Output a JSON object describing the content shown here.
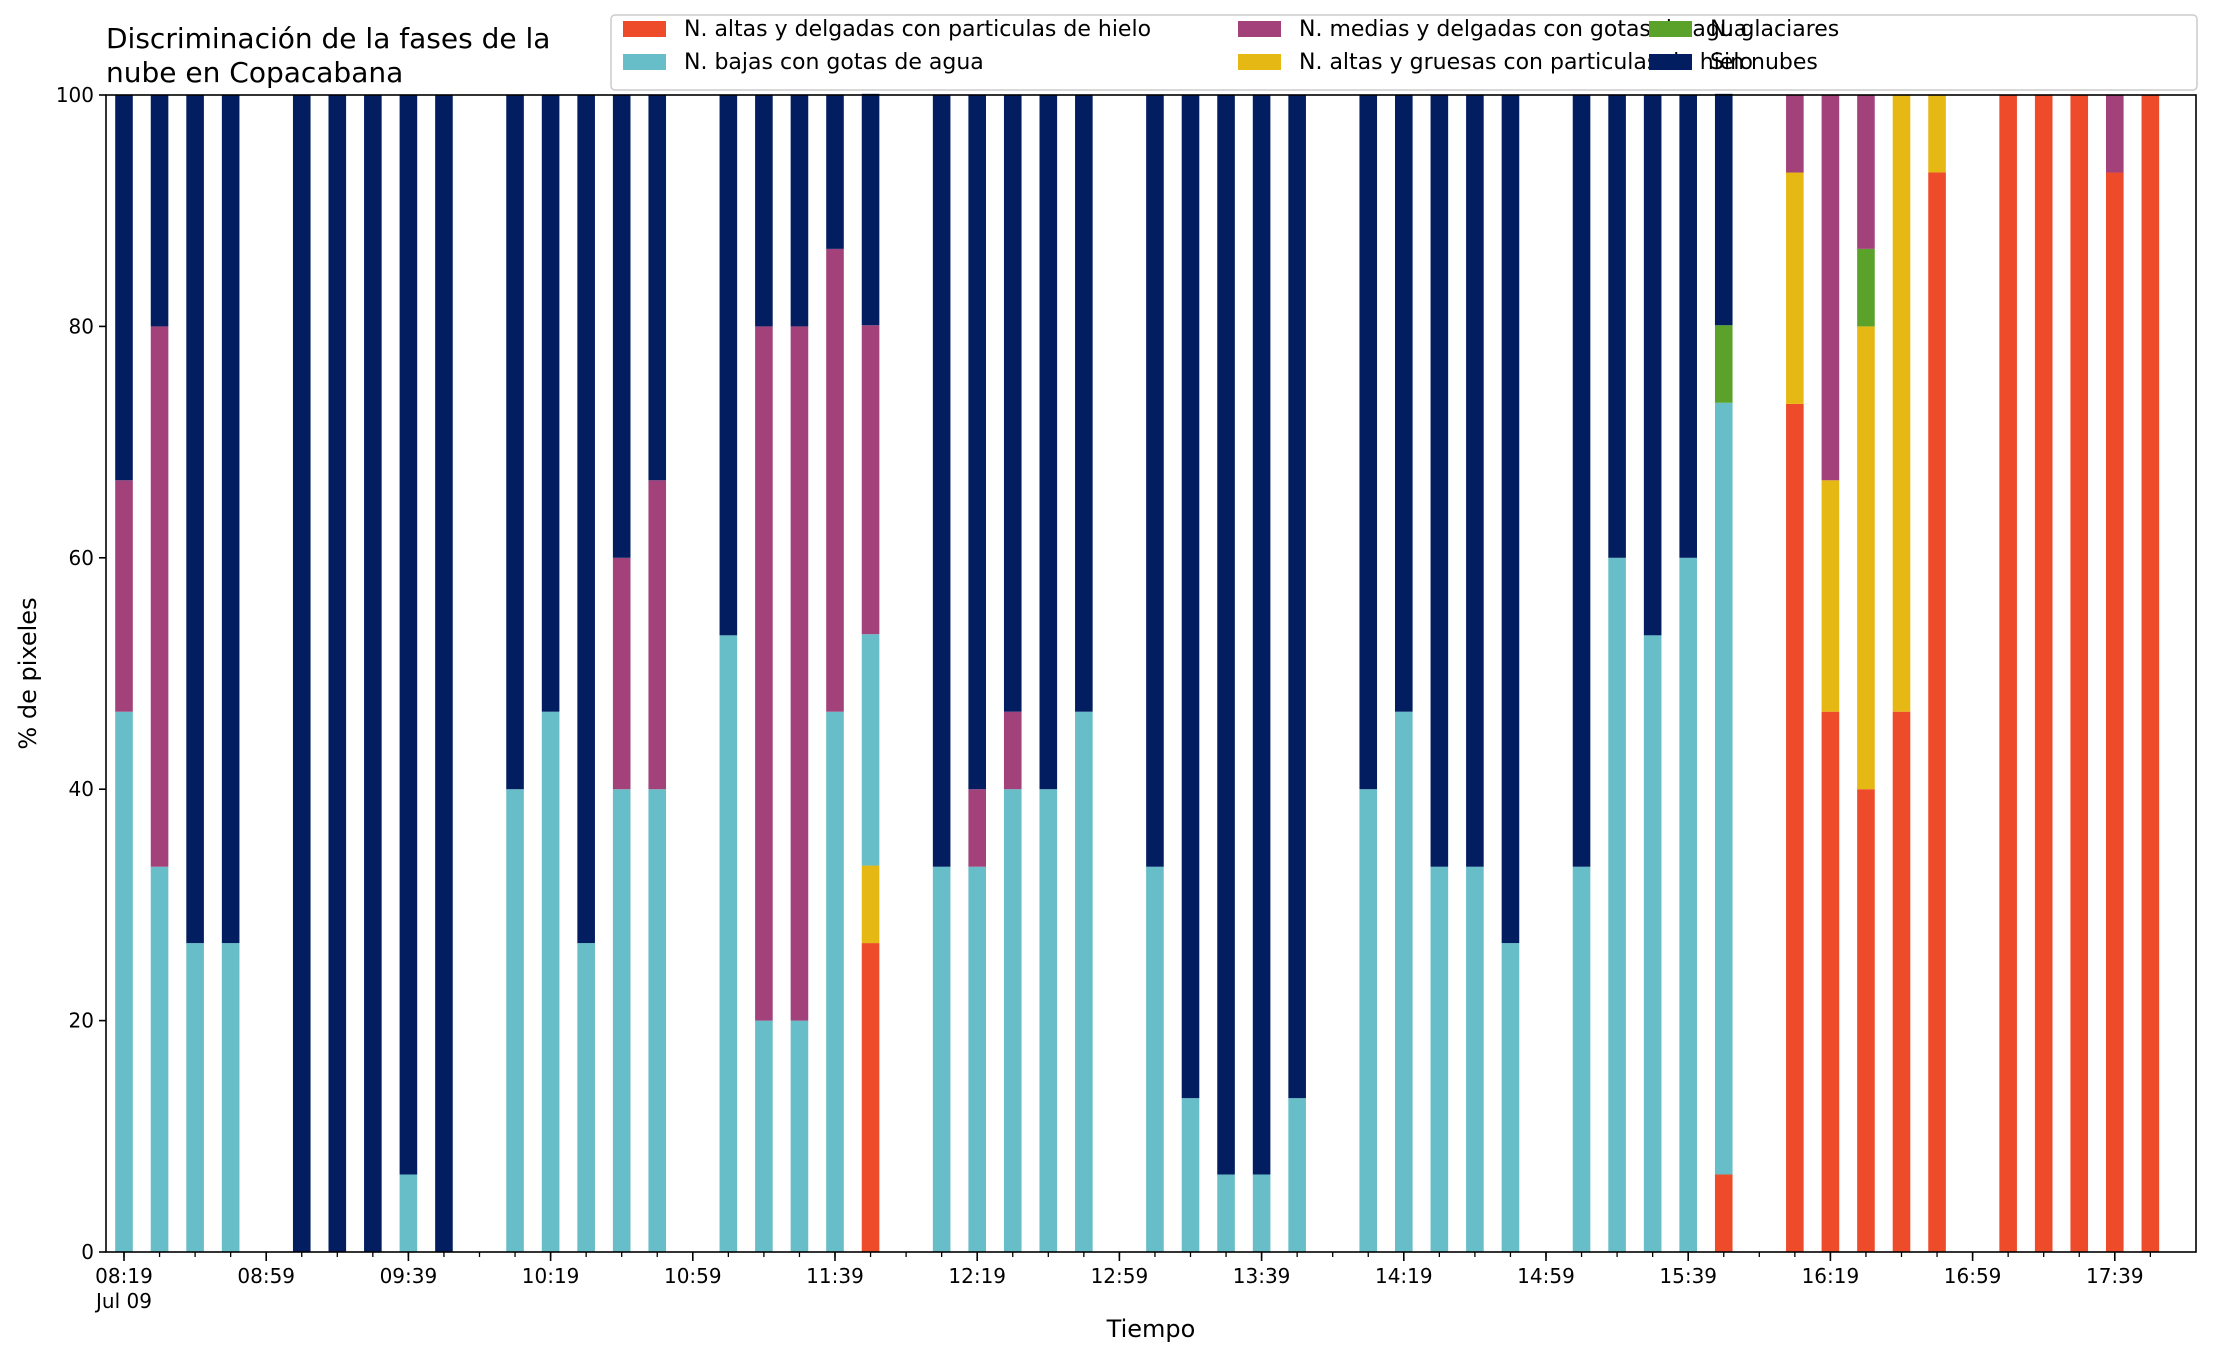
{
  "chart_data": {
    "type": "bar",
    "stacked": true,
    "title": "Discriminación de la fases de la\nnube en Copacabana",
    "xlabel": "Tiempo",
    "ylabel": "% de pixeles",
    "ylim": [
      0,
      100
    ],
    "yticks": [
      0,
      20,
      40,
      60,
      80,
      100
    ],
    "grid": false,
    "legend_position": "top-right",
    "date_label": "Jul 09",
    "xticks": [
      "08:19",
      "08:59",
      "09:39",
      "10:19",
      "10:59",
      "11:39",
      "12:19",
      "12:59",
      "13:39",
      "14:19",
      "14:59",
      "15:39",
      "16:19",
      "16:59",
      "17:39"
    ],
    "series": [
      {
        "name": "N. altas y delgadas con particulas de hielo",
        "color": "#ee4b2b"
      },
      {
        "name": "N. altas y gruesas con particulas de hielo",
        "color": "#e6b813"
      },
      {
        "name": "N. bajas con gotas de agua",
        "color": "#67bdc8"
      },
      {
        "name": "N. glaciares",
        "color": "#5ba22a"
      },
      {
        "name": "N. medias y delgadas con gotas de agua",
        "color": "#a3427a"
      },
      {
        "name": "Sin nubes",
        "color": "#021e60"
      }
    ],
    "legend_order": [
      0,
      2,
      4,
      1,
      3,
      5
    ],
    "categories": [
      "08:19",
      "08:29",
      "08:39",
      "08:49",
      "08:59",
      "09:09",
      "09:19",
      "09:29",
      "09:39",
      "09:49",
      "09:59",
      "10:09",
      "10:19",
      "10:29",
      "10:39",
      "10:49",
      "10:59",
      "11:09",
      "11:19",
      "11:29",
      "11:39",
      "11:49",
      "11:59",
      "12:09",
      "12:19",
      "12:29",
      "12:39",
      "12:49",
      "12:59",
      "13:09",
      "13:19",
      "13:29",
      "13:39",
      "13:49",
      "13:59",
      "14:09",
      "14:19",
      "14:29",
      "14:39",
      "14:49",
      "14:59",
      "15:09",
      "15:19",
      "15:29",
      "15:39",
      "15:49",
      "15:59",
      "16:09",
      "16:19",
      "16:29",
      "16:39",
      "16:49",
      "16:59",
      "17:09",
      "17:19",
      "17:29",
      "17:39",
      "17:49"
    ],
    "values": [
      [
        0,
        0,
        46.7,
        0,
        20,
        33.3
      ],
      [
        0,
        0,
        33.3,
        0,
        46.7,
        20
      ],
      [
        0,
        0,
        26.7,
        0,
        0,
        73.3
      ],
      [
        0,
        0,
        26.7,
        0,
        0,
        73.3
      ],
      null,
      [
        0,
        0,
        0,
        0,
        0,
        100
      ],
      [
        0,
        0,
        0,
        0,
        0,
        100
      ],
      [
        0,
        0,
        0,
        0,
        0,
        100
      ],
      [
        0,
        0,
        6.7,
        0,
        0,
        93.3
      ],
      [
        0,
        0,
        0,
        0,
        0,
        100
      ],
      null,
      [
        0,
        0,
        40,
        0,
        0,
        60
      ],
      [
        0,
        0,
        46.7,
        0,
        0,
        53.3
      ],
      [
        0,
        0,
        26.7,
        0,
        0,
        73.3
      ],
      [
        0,
        0,
        40,
        0,
        20,
        40
      ],
      [
        0,
        0,
        40,
        0,
        26.7,
        33.3
      ],
      null,
      [
        0,
        0,
        53.3,
        0,
        0,
        46.7
      ],
      [
        0,
        0,
        20,
        0,
        60,
        20
      ],
      [
        0,
        0,
        20,
        0,
        60,
        20
      ],
      [
        0,
        0,
        46.7,
        0,
        40,
        13.3
      ],
      [
        26.7,
        6.7,
        20,
        0,
        26.7,
        20
      ],
      null,
      [
        0,
        0,
        33.3,
        0,
        0,
        66.7
      ],
      [
        0,
        0,
        33.3,
        0,
        6.7,
        60
      ],
      [
        0,
        0,
        40,
        0,
        6.7,
        53.3
      ],
      [
        0,
        0,
        40,
        0,
        0,
        60
      ],
      [
        0,
        0,
        46.7,
        0,
        0,
        53.3
      ],
      null,
      [
        0,
        0,
        33.3,
        0,
        0,
        66.7
      ],
      [
        0,
        0,
        13.3,
        0,
        0,
        86.7
      ],
      [
        0,
        0,
        6.7,
        0,
        0,
        93.3
      ],
      [
        0,
        0,
        6.7,
        0,
        0,
        93.3
      ],
      [
        0,
        0,
        13.3,
        0,
        0,
        86.7
      ],
      null,
      [
        0,
        0,
        40,
        0,
        0,
        60
      ],
      [
        0,
        0,
        46.7,
        0,
        0,
        53.3
      ],
      [
        0,
        0,
        33.3,
        0,
        0,
        66.7
      ],
      [
        0,
        0,
        33.3,
        0,
        0,
        66.7
      ],
      [
        0,
        0,
        26.7,
        0,
        0,
        73.3
      ],
      null,
      [
        0,
        0,
        33.3,
        0,
        0,
        66.7
      ],
      [
        0,
        0,
        60,
        0,
        0,
        40
      ],
      [
        0,
        0,
        53.3,
        0,
        0,
        46.7
      ],
      [
        0,
        0,
        60,
        0,
        0,
        40
      ],
      [
        6.7,
        0,
        66.7,
        6.7,
        0,
        20
      ],
      null,
      [
        73.3,
        20,
        0,
        0,
        6.7,
        0
      ],
      [
        46.7,
        20,
        0,
        0,
        33.3,
        0
      ],
      [
        40,
        40,
        0,
        6.7,
        13.3,
        0
      ],
      [
        46.7,
        53.3,
        0,
        0,
        0,
        0
      ],
      [
        93.3,
        6.7,
        0,
        0,
        0,
        0
      ],
      null,
      [
        100,
        0,
        0,
        0,
        0,
        0
      ],
      [
        100,
        0,
        0,
        0,
        0,
        0
      ],
      [
        100,
        0,
        0,
        0,
        0,
        0
      ],
      [
        93.3,
        0,
        0,
        0,
        6.7,
        0
      ],
      [
        100,
        0,
        0,
        0,
        0,
        0
      ]
    ]
  }
}
